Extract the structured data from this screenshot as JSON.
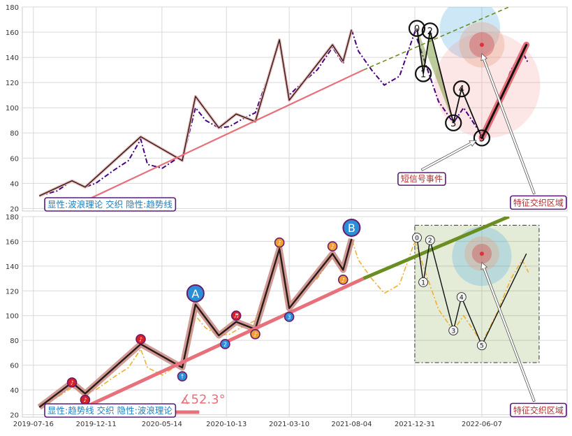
{
  "chart_data": [
    {
      "type": "line",
      "panel": "top",
      "ylim": [
        18,
        180
      ],
      "y_ticks": [
        20,
        40,
        60,
        80,
        100,
        120,
        140,
        160,
        180
      ],
      "grid": true,
      "series": [
        {
          "role": "price",
          "style": "dashdot",
          "color": "#4b0082",
          "points": [
            [
              "2019-07-30",
              30
            ],
            [
              "2019-09-10",
              34
            ],
            [
              "2019-10-15",
              42
            ],
            [
              "2019-11-15",
              37
            ],
            [
              "2019-12-10",
              40
            ],
            [
              "2020-01-20",
              50
            ],
            [
              "2020-02-25",
              58
            ],
            [
              "2020-03-25",
              75
            ],
            [
              "2020-04-10",
              55
            ],
            [
              "2020-05-15",
              52
            ],
            [
              "2020-06-20",
              60
            ],
            [
              "2020-07-01",
              58
            ],
            [
              "2020-08-01",
              100
            ],
            [
              "2020-08-25",
              90
            ],
            [
              "2020-09-25",
              84
            ],
            [
              "2020-10-20",
              85
            ],
            [
              "2020-11-25",
              92
            ],
            [
              "2020-12-20",
              96
            ],
            [
              "2021-01-20",
              125
            ],
            [
              "2021-02-15",
              152
            ],
            [
              "2021-03-10",
              110
            ],
            [
              "2021-04-10",
              120
            ],
            [
              "2021-05-15",
              130
            ],
            [
              "2021-06-20",
              148
            ],
            [
              "2021-07-15",
              135
            ],
            [
              "2021-08-04",
              162
            ],
            [
              "2021-08-20",
              145
            ],
            [
              "2021-09-20",
              130
            ],
            [
              "2021-10-20",
              118
            ],
            [
              "2021-11-25",
              125
            ],
            [
              "2021-12-31",
              160
            ],
            [
              "2022-01-20",
              140
            ],
            [
              "2022-02-25",
              105
            ],
            [
              "2022-04-01",
              88
            ],
            [
              "2022-04-25",
              100
            ],
            [
              "2022-06-07",
              78
            ],
            [
              "2022-07-10",
              100
            ],
            [
              "2022-08-15",
              130
            ],
            [
              "2022-09-10",
              145
            ],
            [
              "2022-09-25",
              135
            ]
          ]
        },
        {
          "role": "wave",
          "color": "#2b1a1a",
          "points": [
            [
              "2019-07-30",
              30
            ],
            [
              "2019-10-15",
              42
            ],
            [
              "2019-11-15",
              37
            ],
            [
              "2020-03-25",
              77
            ],
            [
              "2020-07-01",
              58
            ],
            [
              "2020-08-01",
              109
            ],
            [
              "2020-09-25",
              84
            ],
            [
              "2020-11-05",
              95
            ],
            [
              "2020-12-20",
              89
            ],
            [
              "2021-02-15",
              154
            ],
            [
              "2021-03-10",
              106
            ],
            [
              "2021-06-20",
              150
            ],
            [
              "2021-07-15",
              137
            ],
            [
              "2021-08-04",
              162
            ]
          ]
        },
        {
          "role": "trendline",
          "color": "#e8707a",
          "points": [
            [
              "2019-10-20",
              22
            ],
            [
              "2021-09-01",
              130
            ]
          ]
        },
        {
          "role": "trendline-extension",
          "style": "dashed",
          "color": "#6b8e23",
          "points": [
            [
              "2021-09-01",
              130
            ],
            [
              "2022-08-10",
              180
            ]
          ]
        },
        {
          "role": "wave-signal",
          "color": "#111111",
          "points": [
            [
              "2022-01-05",
              163
            ],
            [
              "2022-01-20",
              127
            ],
            [
              "2022-02-05",
              161
            ],
            [
              "2022-04-01",
              88
            ],
            [
              "2022-04-20",
              115
            ],
            [
              "2022-06-07",
              76
            ],
            [
              "2022-09-20",
              150
            ]
          ]
        }
      ],
      "markers": [
        {
          "label": "0",
          "x": "2022-01-05",
          "y": 163
        },
        {
          "label": "1",
          "x": "2022-01-20",
          "y": 127
        },
        {
          "label": "2",
          "x": "2022-02-05",
          "y": 161
        },
        {
          "label": "3",
          "x": "2022-04-01",
          "y": 88
        },
        {
          "label": "4",
          "x": "2022-04-20",
          "y": 115
        },
        {
          "label": "5",
          "x": "2022-06-07",
          "y": 76
        }
      ],
      "circles": [
        {
          "x": "2022-05-10",
          "y": 163,
          "r_y": 24,
          "color": "#5aaee0",
          "opacity": 0.3
        },
        {
          "x": "2022-06-20",
          "y": 118,
          "r_y": 42,
          "color": "#f08b8b",
          "opacity": 0.22
        },
        {
          "x": "2022-06-07",
          "y": 150,
          "r_y": 18,
          "color": "#e8a080",
          "opacity": 0.35
        },
        {
          "x": "2022-06-07",
          "y": 150,
          "r_y": 10,
          "color": "#d04a4a",
          "opacity": 0.4
        }
      ],
      "focus_dot": {
        "x": "2022-06-07",
        "y": 150
      },
      "annotations": [
        {
          "text": "短信号事件",
          "x": "2021-11-28",
          "y": 44,
          "arrow_to": {
            "x": "2022-05-25",
            "y": 74
          }
        },
        {
          "text": "特征交织区域",
          "x": "2022-08-20",
          "y": 25,
          "arrow_to": {
            "x": "2022-06-07",
            "y": 143
          }
        }
      ],
      "legend": {
        "text": "显性:波浪理论 交织 隐性:趋势线",
        "position": "bottom-left"
      }
    },
    {
      "type": "line",
      "panel": "bottom",
      "ylim": [
        18,
        180
      ],
      "y_ticks": [
        20,
        40,
        60,
        80,
        100,
        120,
        140,
        160,
        180
      ],
      "x_ticks": [
        "2019-07-16",
        "2019-12-11",
        "2020-05-14",
        "2020-10-13",
        "2021-03-10",
        "2021-08-04",
        "2021-12-31",
        "2022-06-07"
      ],
      "grid": true,
      "series": [
        {
          "role": "price",
          "style": "dashdot",
          "color": "#f0b030",
          "points": [
            [
              "2019-07-30",
              28
            ],
            [
              "2019-09-10",
              34
            ],
            [
              "2019-10-15",
              42
            ],
            [
              "2019-11-15",
              37
            ],
            [
              "2019-12-10",
              40
            ],
            [
              "2020-01-20",
              50
            ],
            [
              "2020-02-25",
              58
            ],
            [
              "2020-03-25",
              73
            ],
            [
              "2020-04-10",
              58
            ],
            [
              "2020-05-15",
              52
            ],
            [
              "2020-06-20",
              60
            ],
            [
              "2020-07-01",
              58
            ],
            [
              "2020-08-01",
              100
            ],
            [
              "2020-08-25",
              90
            ],
            [
              "2020-09-25",
              84
            ],
            [
              "2020-10-20",
              85
            ],
            [
              "2020-11-25",
              92
            ],
            [
              "2020-12-20",
              96
            ],
            [
              "2021-01-20",
              125
            ],
            [
              "2021-02-15",
              152
            ],
            [
              "2021-03-10",
              110
            ],
            [
              "2021-04-10",
              120
            ],
            [
              "2021-05-15",
              130
            ],
            [
              "2021-06-20",
              148
            ],
            [
              "2021-07-15",
              135
            ],
            [
              "2021-08-04",
              162
            ],
            [
              "2021-08-20",
              145
            ],
            [
              "2021-09-20",
              130
            ],
            [
              "2021-10-20",
              118
            ],
            [
              "2021-11-25",
              125
            ],
            [
              "2021-12-31",
              160
            ],
            [
              "2022-01-20",
              140
            ],
            [
              "2022-02-25",
              105
            ],
            [
              "2022-04-01",
              88
            ],
            [
              "2022-04-25",
              100
            ],
            [
              "2022-06-07",
              78
            ],
            [
              "2022-07-10",
              100
            ],
            [
              "2022-08-15",
              130
            ],
            [
              "2022-09-10",
              145
            ],
            [
              "2022-09-25",
              135
            ]
          ]
        },
        {
          "role": "wave",
          "color": "#2b1a1a",
          "points": [
            [
              "2019-07-30",
              26
            ],
            [
              "2019-10-15",
              46
            ],
            [
              "2019-11-15",
              37
            ],
            [
              "2020-03-25",
              77
            ],
            [
              "2020-07-01",
              58
            ],
            [
              "2020-08-01",
              109
            ],
            [
              "2020-09-25",
              84
            ],
            [
              "2020-11-05",
              95
            ],
            [
              "2020-12-20",
              89
            ],
            [
              "2021-02-15",
              154
            ],
            [
              "2021-03-10",
              106
            ],
            [
              "2021-06-20",
              150
            ],
            [
              "2021-07-15",
              137
            ],
            [
              "2021-08-04",
              162
            ]
          ]
        },
        {
          "role": "trendline",
          "color": "#e8707a",
          "points": [
            [
              "2019-10-20",
              22
            ],
            [
              "2021-09-01",
              130
            ]
          ]
        },
        {
          "role": "trendline-extension",
          "color": "#6b8e23",
          "points": [
            [
              "2021-09-01",
              130
            ],
            [
              "2022-08-10",
              180
            ]
          ]
        },
        {
          "role": "wave-signal",
          "color": "#111111",
          "points": [
            [
              "2022-01-05",
              163
            ],
            [
              "2022-01-20",
              127
            ],
            [
              "2022-02-05",
              161
            ],
            [
              "2022-04-01",
              88
            ],
            [
              "2022-04-20",
              115
            ],
            [
              "2022-06-07",
              76
            ],
            [
              "2022-09-20",
              150
            ]
          ]
        }
      ],
      "wave_badges": [
        {
          "label": "A",
          "x": "2020-08-01",
          "y": 118,
          "color": "#2b8fd8",
          "size": "large"
        },
        {
          "label": "B",
          "x": "2021-08-04",
          "y": 171,
          "color": "#2b8fd8",
          "size": "large"
        },
        {
          "label": "♪",
          "x": "2019-10-15",
          "y": 46,
          "color": "#d6202a"
        },
        {
          "label": "♪",
          "x": "2019-11-15",
          "y": 32,
          "color": "#d6202a"
        },
        {
          "label": "♪",
          "x": "2020-03-25",
          "y": 81,
          "color": "#d6202a"
        },
        {
          "label": "↑",
          "x": "2020-07-01",
          "y": 51,
          "color": "#2b8fd8"
        },
        {
          "label": "2",
          "x": "2020-10-10",
          "y": 77,
          "color": "#2b8fd8"
        },
        {
          "label": "♬",
          "x": "2020-11-05",
          "y": 100,
          "color": "#d6202a"
        },
        {
          "label": "♪",
          "x": "2020-12-20",
          "y": 85,
          "color": "#f0a030"
        },
        {
          "label": "♪",
          "x": "2021-02-15",
          "y": 159,
          "color": "#f0a030"
        },
        {
          "label": "3",
          "x": "2021-03-10",
          "y": 99,
          "color": "#2b8fd8"
        },
        {
          "label": "♪",
          "x": "2021-06-20",
          "y": 156,
          "color": "#f0a030"
        },
        {
          "label": "♪",
          "x": "2021-07-15",
          "y": 129,
          "color": "#f0a030"
        }
      ],
      "markers": [
        {
          "label": "0",
          "x": "2022-01-05",
          "y": 163
        },
        {
          "label": "1",
          "x": "2022-01-20",
          "y": 127
        },
        {
          "label": "2",
          "x": "2022-02-05",
          "y": 161
        },
        {
          "label": "3",
          "x": "2022-04-01",
          "y": 88
        },
        {
          "label": "4",
          "x": "2022-04-20",
          "y": 115
        },
        {
          "label": "5",
          "x": "2022-06-07",
          "y": 76
        }
      ],
      "circles": [
        {
          "x": "2022-06-07",
          "y": 148,
          "r_y": 24,
          "color": "#5aaee0",
          "opacity": 0.3
        },
        {
          "x": "2022-06-07",
          "y": 150,
          "r_y": 14,
          "color": "#e8a080",
          "opacity": 0.35
        },
        {
          "x": "2022-06-07",
          "y": 150,
          "r_y": 8,
          "color": "#d04a4a",
          "opacity": 0.4
        }
      ],
      "focus_dot": {
        "x": "2022-06-07",
        "y": 150
      },
      "region": {
        "x0": "2021-12-31",
        "x1": "2022-10-20",
        "y0": 62,
        "y1": 173,
        "color": "#6b8e23"
      },
      "angle_label": "∡52.3°",
      "angle_position": {
        "x": "2020-06-25",
        "y": 29
      },
      "angle_underline": {
        "x0": "2019-10-20",
        "x1": "2020-08-10",
        "y": 22
      },
      "annotations": [
        {
          "text": "特征交织区域",
          "x": "2022-08-20",
          "y": 24,
          "arrow_to": {
            "x": "2022-06-07",
            "y": 143
          }
        }
      ],
      "legend": {
        "text": "显性:趋势线 交织 隐性:波浪理论",
        "position": "bottom-left"
      }
    }
  ]
}
